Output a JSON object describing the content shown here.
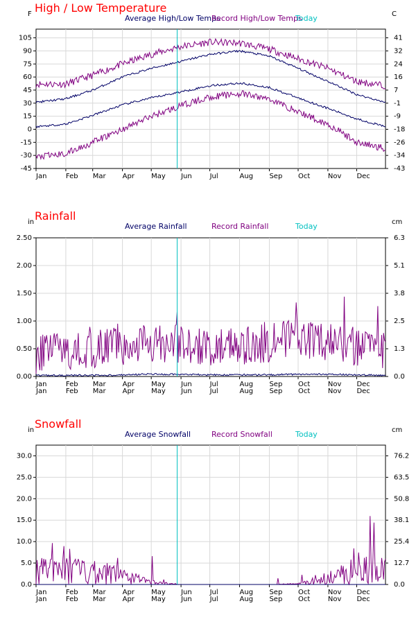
{
  "colors": {
    "average": "#000066",
    "record": "#800080",
    "today": "#00c0c0",
    "title": "#ff0000",
    "grid": "#d8d8d8"
  },
  "chart_data": [
    {
      "type": "line",
      "title": "High / Low Temperature",
      "left_unit": "F",
      "right_unit": "C",
      "legend": {
        "average": "Average High/Low Temps",
        "record": "Record High/Low Temps",
        "today": "Today"
      },
      "x_ticks": [
        "Jan",
        "Feb",
        "Mar",
        "Apr",
        "May",
        "Jun",
        "Jul",
        "Aug",
        "Sep",
        "Oct",
        "Nov",
        "Dec"
      ],
      "y_ticks_left": [
        "105",
        "90",
        "75",
        "60",
        "45",
        "30",
        "15",
        "0",
        "-15",
        "-30",
        "-45"
      ],
      "y_ticks_right": [
        "41",
        "32",
        "24",
        "16",
        "7",
        "-1",
        "-9",
        "-18",
        "-26",
        "-34",
        "-43"
      ],
      "ylim": [
        -45,
        115
      ],
      "today_day": 148,
      "series": [
        {
          "name": "Record High",
          "role": "record",
          "x": [
            1,
            32,
            60,
            91,
            121,
            152,
            182,
            213,
            244,
            274,
            305,
            335,
            365
          ],
          "values": [
            52,
            52,
            62,
            75,
            86,
            95,
            100,
            99,
            92,
            81,
            70,
            55,
            50
          ]
        },
        {
          "name": "Average High",
          "role": "average",
          "x": [
            1,
            32,
            60,
            91,
            121,
            152,
            182,
            213,
            244,
            274,
            305,
            335,
            365
          ],
          "values": [
            31,
            35,
            45,
            60,
            70,
            78,
            86,
            90,
            84,
            70,
            55,
            40,
            31
          ]
        },
        {
          "name": "Average Low",
          "role": "average",
          "x": [
            1,
            32,
            60,
            91,
            121,
            152,
            182,
            213,
            244,
            274,
            305,
            335,
            365
          ],
          "values": [
            3,
            6,
            16,
            28,
            36,
            43,
            50,
            53,
            48,
            36,
            24,
            12,
            3
          ]
        },
        {
          "name": "Record Low",
          "role": "record",
          "x": [
            1,
            32,
            60,
            91,
            121,
            152,
            182,
            213,
            244,
            274,
            305,
            335,
            365
          ],
          "values": [
            -32,
            -28,
            -15,
            0,
            15,
            27,
            37,
            41,
            35,
            20,
            6,
            -15,
            -22
          ]
        }
      ]
    },
    {
      "type": "line",
      "title": "Rainfall",
      "left_unit": "in",
      "right_unit": "cm",
      "legend": {
        "average": "Average Rainfall",
        "record": "Record Rainfall",
        "today": "Today"
      },
      "x_ticks": [
        "Jan",
        "Feb",
        "Mar",
        "Apr",
        "May",
        "Jun",
        "Jul",
        "Aug",
        "Sep",
        "Oct",
        "Nov",
        "Dec"
      ],
      "y_ticks_left": [
        "2.50",
        "2.00",
        "1.50",
        "1.00",
        "0.50",
        "0.00"
      ],
      "y_ticks_right": [
        "6.3",
        "5.1",
        "3.8",
        "2.5",
        "1.3",
        "0.0"
      ],
      "ylim": [
        0,
        2.5
      ],
      "today_day": 148,
      "series": [
        {
          "name": "Record Rainfall",
          "role": "record",
          "x": [
            1,
            32,
            60,
            91,
            121,
            152,
            182,
            213,
            244,
            274,
            305,
            335,
            365
          ],
          "values": [
            0.4,
            0.45,
            0.5,
            0.55,
            0.6,
            0.6,
            0.55,
            0.55,
            0.6,
            0.7,
            0.6,
            0.5,
            0.45
          ]
        },
        {
          "name": "Average Rainfall",
          "role": "average",
          "x": [
            1,
            32,
            60,
            91,
            121,
            152,
            182,
            213,
            244,
            274,
            305,
            335,
            365
          ],
          "values": [
            0.02,
            0.02,
            0.02,
            0.03,
            0.04,
            0.04,
            0.03,
            0.03,
            0.03,
            0.04,
            0.04,
            0.03,
            0.02
          ]
        }
      ]
    },
    {
      "type": "line",
      "title": "Snowfall",
      "left_unit": "in",
      "right_unit": "cm",
      "legend": {
        "average": "Average Snowfall",
        "record": "Record Snowfall",
        "today": "Today"
      },
      "x_ticks": [
        "Jan",
        "Feb",
        "Mar",
        "Apr",
        "May",
        "Jun",
        "Jul",
        "Aug",
        "Sep",
        "Oct",
        "Nov",
        "Dec"
      ],
      "y_ticks_left": [
        "30.0",
        "25.0",
        "20.0",
        "15.0",
        "10.0",
        "5.0",
        "0.0"
      ],
      "y_ticks_right": [
        "76.2",
        "63.5",
        "50.8",
        "38.1",
        "25.4",
        "12.7",
        "0.0"
      ],
      "ylim": [
        0,
        32.5
      ],
      "today_day": 148,
      "series": [
        {
          "name": "Record Snowfall",
          "role": "record",
          "x": [
            1,
            32,
            60,
            91,
            121,
            152,
            182,
            213,
            244,
            274,
            305,
            335,
            365
          ],
          "values": [
            3,
            3.5,
            3,
            2,
            0.5,
            0,
            0,
            0,
            0,
            0.2,
            1.5,
            4,
            3
          ]
        },
        {
          "name": "Average Snowfall",
          "role": "average",
          "x": [
            1,
            32,
            60,
            91,
            121,
            152,
            182,
            213,
            244,
            274,
            305,
            335,
            365
          ],
          "values": [
            0,
            0,
            0,
            0,
            0,
            0,
            0,
            0,
            0,
            0,
            0,
            0,
            0
          ]
        }
      ]
    }
  ]
}
